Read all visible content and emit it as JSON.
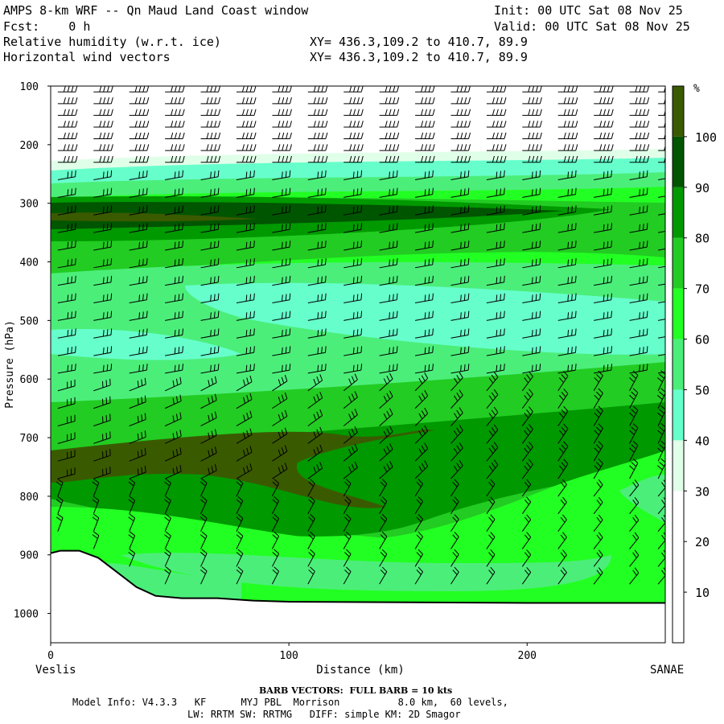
{
  "header": {
    "title": "AMPS 8-km WRF -- Qn Maud Land Coast window",
    "fcst": "Fcst:    0 h",
    "field1": "Relative humidity (w.r.t. ice)",
    "field2": "Horizontal wind vectors",
    "xy1": "XY= 436.3,109.2 to 410.7, 89.9",
    "xy2": "XY= 436.3,109.2 to 410.7, 89.9",
    "init": "Init: 00 UTC Sat 08 Nov 25",
    "valid": "Valid: 00 UTC Sat 08 Nov 25"
  },
  "footer": {
    "barb_note": "BARB VECTORS:  FULL BARB = 10 kts",
    "model_line1": "Model Info: V4.3.3   KF      MYJ PBL  Morrison          8.0 km,  60 levels,",
    "model_line2": "LW: RRTM SW: RRTMG   DIFF: simple KM: 2D Smagor"
  },
  "chart_data": {
    "type": "heatmap",
    "title": "Relative humidity (w.r.t. ice)",
    "xlabel": "Distance (km)",
    "ylabel": "Pressure (hPa)",
    "xlim": [
      0,
      258
    ],
    "ylim": [
      1050,
      100
    ],
    "x_ticks": [
      0,
      100,
      200
    ],
    "y_ticks": [
      100,
      200,
      300,
      400,
      500,
      600,
      700,
      800,
      900,
      1000
    ],
    "left_label": "Veslis",
    "right_label": "SANAE",
    "colorbar": {
      "unit": "%",
      "levels": [
        10,
        20,
        30,
        40,
        50,
        60,
        70,
        80,
        90,
        100
      ],
      "colors": [
        "#ffffff",
        "#ffffff",
        "#ffffff",
        "#e0ffe8",
        "#66ffcc",
        "#4cee7a",
        "#22ff22",
        "#22cc22",
        "#009900",
        "#005500",
        "#3a5a00"
      ]
    },
    "terrain_pressure": [
      {
        "x": 0,
        "p": 897
      },
      {
        "x": 4,
        "p": 893
      },
      {
        "x": 12,
        "p": 893
      },
      {
        "x": 20,
        "p": 905
      },
      {
        "x": 28,
        "p": 930
      },
      {
        "x": 36,
        "p": 955
      },
      {
        "x": 44,
        "p": 970
      },
      {
        "x": 55,
        "p": 974
      },
      {
        "x": 70,
        "p": 974
      },
      {
        "x": 85,
        "p": 978
      },
      {
        "x": 100,
        "p": 980
      },
      {
        "x": 150,
        "p": 981
      },
      {
        "x": 200,
        "p": 982
      },
      {
        "x": 258,
        "p": 982
      }
    ],
    "wind_levels_hpa": [
      110,
      130,
      150,
      170,
      190,
      210,
      230,
      260,
      290,
      320,
      350,
      380,
      410,
      440,
      470,
      500,
      530,
      560,
      590,
      620,
      650,
      680,
      710,
      740,
      770,
      800,
      830,
      860,
      890,
      920,
      950,
      980
    ],
    "wind_columns_km": [
      3,
      18,
      33,
      48,
      63,
      78,
      93,
      108,
      123,
      138,
      153,
      168,
      183,
      198,
      213,
      228,
      243,
      255
    ]
  }
}
